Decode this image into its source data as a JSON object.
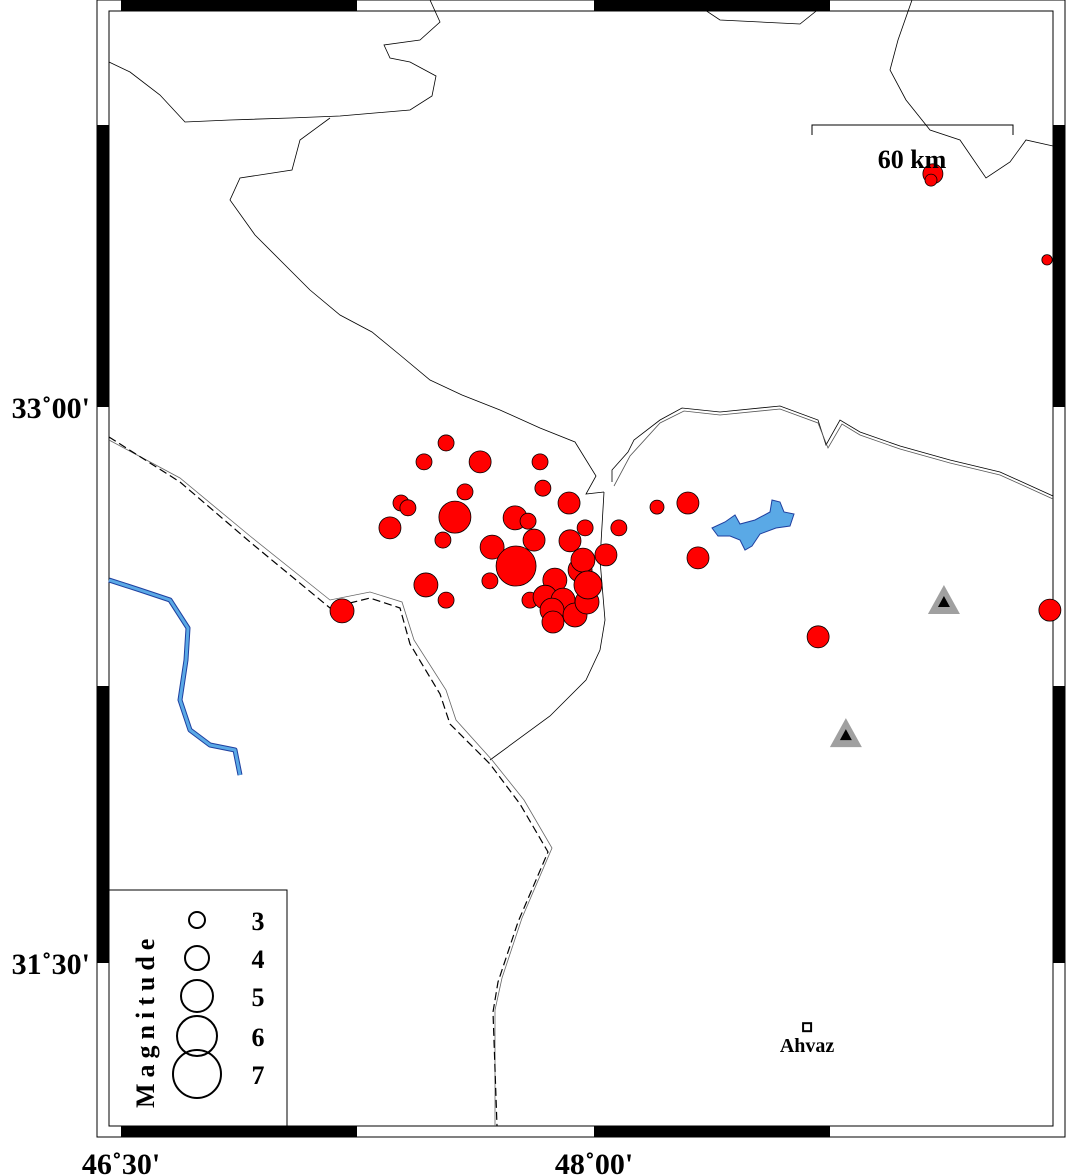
{
  "map": {
    "axes": {
      "x_ticks": [
        {
          "lon": 46.5,
          "label": "46˚30'"
        },
        {
          "lon": 48.0,
          "label": "48˚00'"
        }
      ],
      "y_ticks": [
        {
          "lat": 33.0,
          "label": "33˚00'"
        },
        {
          "lat": 31.5,
          "label": "31˚30'"
        }
      ]
    },
    "scale_bar": {
      "label": "60 km"
    },
    "colors": {
      "event_fill": "#ff0000",
      "water": "#5aa9e6",
      "water_edge": "#1f3f9f",
      "station_outer": "#a0a0a0",
      "station_inner": "#000000",
      "border": "#000000"
    },
    "events": [
      {
        "lon": 49.075,
        "lat": 33.629,
        "mag": 3.5
      },
      {
        "lon": 49.069,
        "lat": 33.612,
        "mag": 2.5
      },
      {
        "lon": 49.437,
        "lat": 33.397,
        "mag": 2.3
      },
      {
        "lon": 47.531,
        "lat": 32.903,
        "mag": 3
      },
      {
        "lon": 47.461,
        "lat": 32.852,
        "mag": 3
      },
      {
        "lon": 47.639,
        "lat": 32.852,
        "mag": 3.75
      },
      {
        "lon": 47.829,
        "lat": 32.852,
        "mag": 3
      },
      {
        "lon": 47.838,
        "lat": 32.781,
        "mag": 3
      },
      {
        "lon": 47.591,
        "lat": 32.771,
        "mag": 3
      },
      {
        "lon": 47.388,
        "lat": 32.741,
        "mag": 3
      },
      {
        "lon": 47.41,
        "lat": 32.728,
        "mag": 3
      },
      {
        "lon": 47.559,
        "lat": 32.703,
        "mag": 5
      },
      {
        "lon": 47.75,
        "lat": 32.701,
        "mag": 4
      },
      {
        "lon": 47.791,
        "lat": 32.692,
        "mag": 3
      },
      {
        "lon": 47.921,
        "lat": 32.741,
        "mag": 3.75
      },
      {
        "lon": 47.353,
        "lat": 32.674,
        "mag": 3.75
      },
      {
        "lon": 47.521,
        "lat": 32.641,
        "mag": 3
      },
      {
        "lon": 47.81,
        "lat": 32.641,
        "mag": 3.75
      },
      {
        "lon": 47.677,
        "lat": 32.622,
        "mag": 4
      },
      {
        "lon": 47.924,
        "lat": 32.639,
        "mag": 3.75
      },
      {
        "lon": 47.753,
        "lat": 32.571,
        "mag": 6
      },
      {
        "lon": 47.972,
        "lat": 32.674,
        "mag": 3
      },
      {
        "lon": 48.079,
        "lat": 32.674,
        "mag": 3
      },
      {
        "lon": 48.2,
        "lat": 32.73,
        "mag": 2.75
      },
      {
        "lon": 48.298,
        "lat": 32.741,
        "mag": 3.75
      },
      {
        "lon": 48.33,
        "lat": 32.593,
        "mag": 3.75
      },
      {
        "lon": 48.038,
        "lat": 32.601,
        "mag": 3.75
      },
      {
        "lon": 47.467,
        "lat": 32.52,
        "mag": 4
      },
      {
        "lon": 47.531,
        "lat": 32.479,
        "mag": 3
      },
      {
        "lon": 47.67,
        "lat": 32.531,
        "mag": 3
      },
      {
        "lon": 47.201,
        "lat": 32.45,
        "mag": 4
      },
      {
        "lon": 47.797,
        "lat": 32.479,
        "mag": 3
      },
      {
        "lon": 47.876,
        "lat": 32.533,
        "mag": 4
      },
      {
        "lon": 47.956,
        "lat": 32.56,
        "mag": 4
      },
      {
        "lon": 47.965,
        "lat": 32.587,
        "mag": 4
      },
      {
        "lon": 47.845,
        "lat": 32.487,
        "mag": 4
      },
      {
        "lon": 47.902,
        "lat": 32.479,
        "mag": 4
      },
      {
        "lon": 47.867,
        "lat": 32.452,
        "mag": 4
      },
      {
        "lon": 47.87,
        "lat": 32.42,
        "mag": 3.75
      },
      {
        "lon": 47.94,
        "lat": 32.439,
        "mag": 4
      },
      {
        "lon": 47.978,
        "lat": 32.474,
        "mag": 4
      },
      {
        "lon": 47.981,
        "lat": 32.52,
        "mag": 4.5
      },
      {
        "lon": 48.711,
        "lat": 32.38,
        "mag": 3.75
      },
      {
        "lon": 49.446,
        "lat": 32.452,
        "mag": 3.75
      }
    ],
    "stations": [
      {
        "lon": 49.11,
        "lat": 32.474
      },
      {
        "lon": 48.799,
        "lat": 32.115
      }
    ],
    "cities": [
      {
        "name": "Ahvaz",
        "lon": 48.676,
        "lat": 31.327
      }
    ],
    "legend": {
      "title": "Magnitude",
      "entries": [
        {
          "mag": 3,
          "label": "3"
        },
        {
          "mag": 4,
          "label": "4"
        },
        {
          "mag": 5,
          "label": "5"
        },
        {
          "mag": 6,
          "label": "6"
        },
        {
          "mag": 7,
          "label": "7"
        }
      ]
    }
  }
}
